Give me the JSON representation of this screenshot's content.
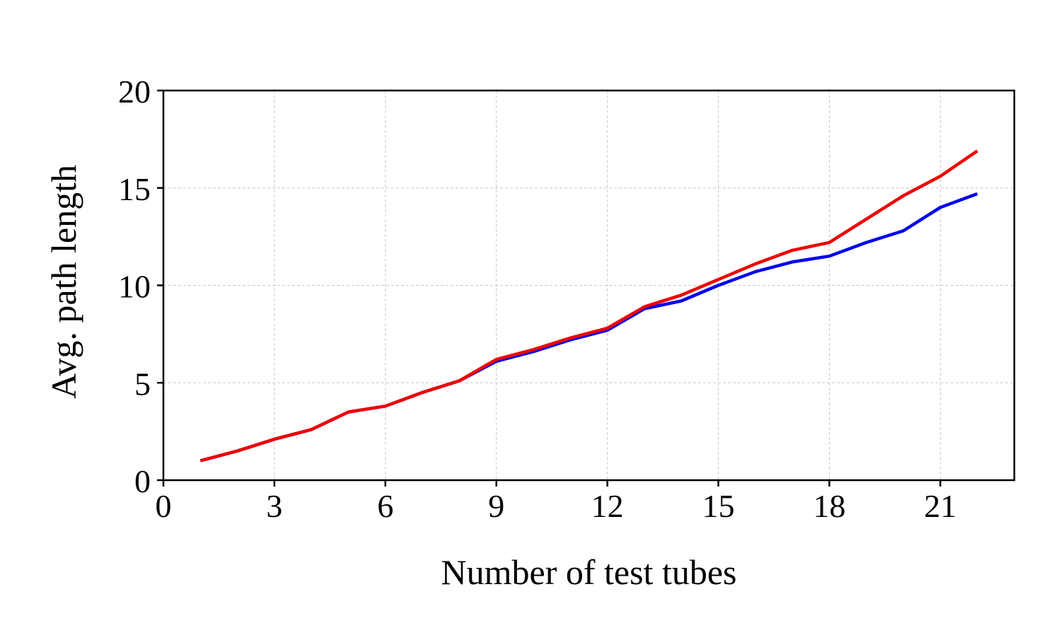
{
  "chart_data": {
    "type": "line",
    "title": "",
    "xlabel": "Number of test tubes",
    "ylabel": "Avg. path length",
    "xlim": [
      0,
      23
    ],
    "ylim": [
      0,
      20
    ],
    "xticks": [
      0,
      3,
      6,
      9,
      12,
      15,
      18,
      21
    ],
    "yticks": [
      0,
      5,
      10,
      15,
      20
    ],
    "grid": true,
    "legend": "none",
    "x": [
      1,
      2,
      3,
      4,
      5,
      6,
      7,
      8,
      9,
      10,
      11,
      12,
      13,
      14,
      15,
      16,
      17,
      18,
      19,
      20,
      21,
      22
    ],
    "series": [
      {
        "color": "#0000ee",
        "values": [
          1.0,
          1.5,
          2.1,
          2.6,
          3.5,
          3.8,
          4.5,
          5.1,
          6.1,
          6.6,
          7.2,
          7.7,
          8.8,
          9.2,
          10.0,
          10.7,
          11.2,
          11.5,
          12.2,
          12.8,
          14.0,
          14.7
        ]
      },
      {
        "color": "#ee0000",
        "values": [
          1.0,
          1.5,
          2.1,
          2.6,
          3.5,
          3.8,
          4.5,
          5.1,
          6.2,
          6.7,
          7.3,
          7.8,
          8.9,
          9.5,
          10.3,
          11.1,
          11.8,
          12.2,
          13.4,
          14.6,
          15.6,
          16.9
        ]
      }
    ]
  }
}
